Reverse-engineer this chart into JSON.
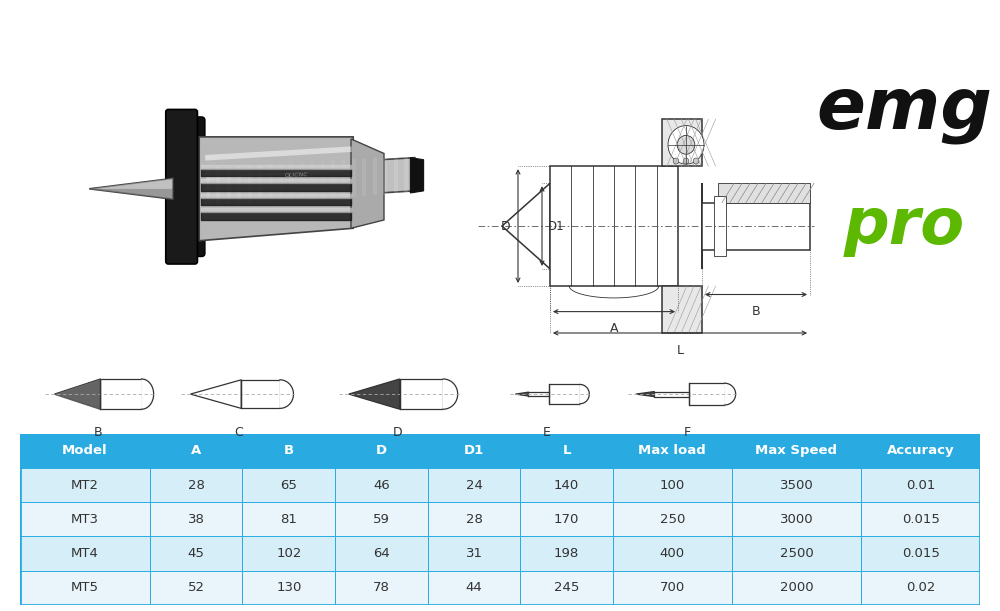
{
  "table_headers": [
    "Model",
    "A",
    "B",
    "D",
    "D1",
    "L",
    "Max load",
    "Max Speed",
    "Accuracy"
  ],
  "table_rows": [
    [
      "MT2",
      "28",
      "65",
      "46",
      "24",
      "140",
      "100",
      "3500",
      "0.01"
    ],
    [
      "MT3",
      "38",
      "81",
      "59",
      "28",
      "170",
      "250",
      "3000",
      "0.015"
    ],
    [
      "MT4",
      "45",
      "102",
      "64",
      "31",
      "198",
      "400",
      "2500",
      "0.015"
    ],
    [
      "MT5",
      "52",
      "130",
      "78",
      "44",
      "245",
      "700",
      "2000",
      "0.02"
    ]
  ],
  "header_bg": "#29ABE2",
  "header_text": "#FFFFFF",
  "row_bg_even": "#D6EEF8",
  "row_bg_odd": "#EAF5FB",
  "border_color": "#29ABE2",
  "row_text": "#333333",
  "tip_labels": [
    "B",
    "C",
    "D",
    "E",
    "F"
  ],
  "emg_color": "#111111",
  "pro_color": "#5cb800",
  "bg_color": "#FFFFFF",
  "draw_color": "#333333",
  "hatch_color": "#666666"
}
